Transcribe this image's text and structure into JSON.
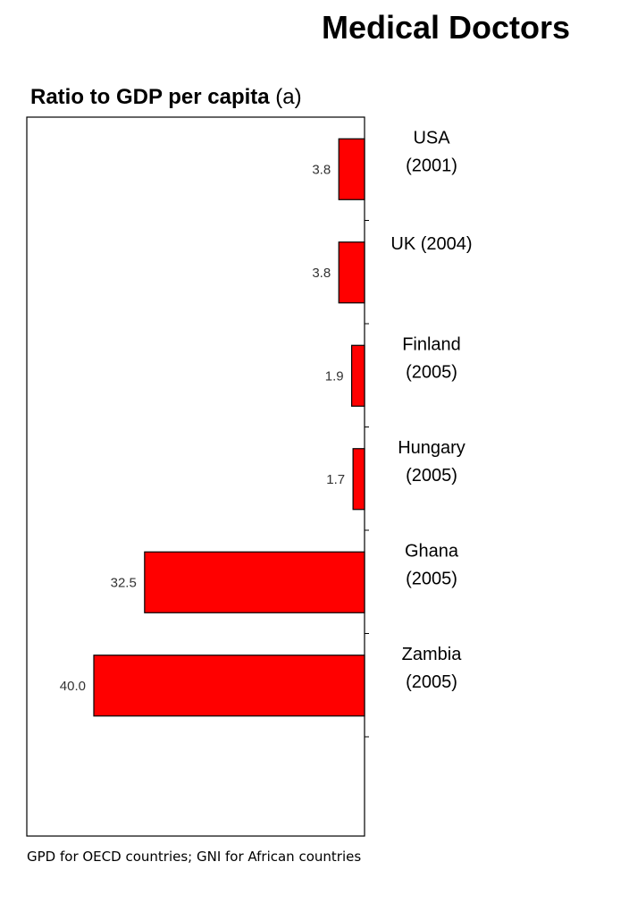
{
  "page": {
    "title": "Medical Doctors",
    "footnote": "GPD for OECD countries;  GNI for African countries"
  },
  "chart_data": {
    "type": "bar",
    "orientation": "horizontal",
    "direction": "right-to-left",
    "title": "Ratio to GDP per capita",
    "title_note": "(a)",
    "categories": [
      [
        "USA",
        "(2001)"
      ],
      [
        "UK (2004)"
      ],
      [
        "Finland",
        "(2005)"
      ],
      [
        "Hungary",
        "(2005)"
      ],
      [
        "Ghana",
        "(2005)"
      ],
      [
        "Zambia",
        "(2005)"
      ]
    ],
    "values": [
      3.8,
      3.8,
      1.9,
      1.7,
      32.5,
      40.0
    ],
    "value_labels": [
      "3.8",
      "3.8",
      "1.9",
      "1.7",
      "32.5",
      "40.0"
    ],
    "xlim": [
      0,
      50
    ],
    "bar_color": "#ff0000",
    "bar_edge_color": "#000000",
    "grid": false
  }
}
